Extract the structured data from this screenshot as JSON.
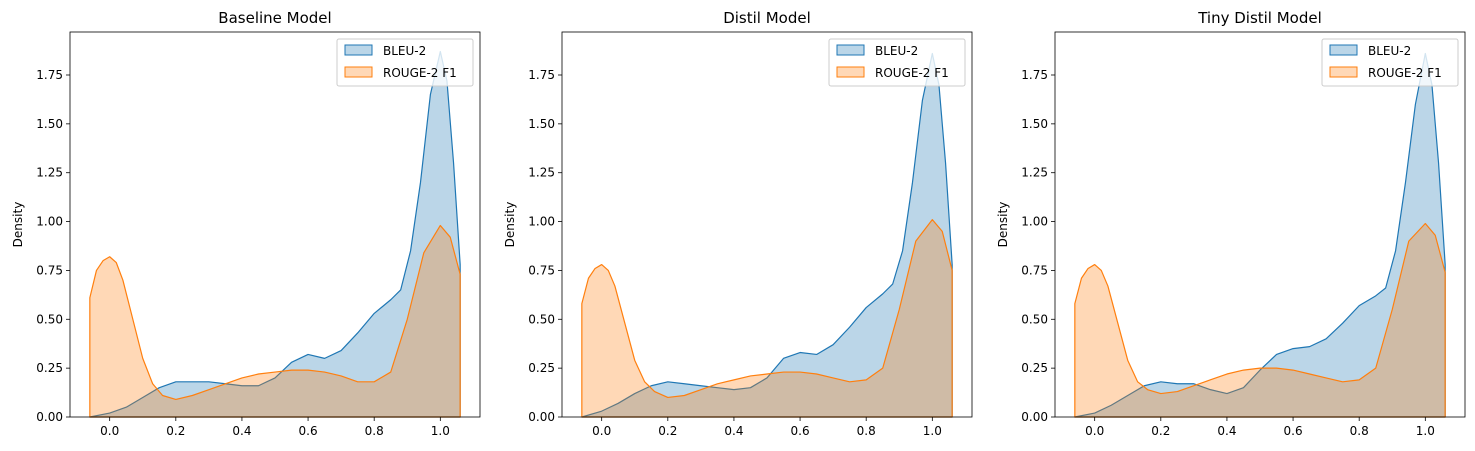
{
  "chart_data": [
    {
      "type": "area",
      "title": "Baseline Model",
      "xlabel": "",
      "ylabel": "Density",
      "xlim": [
        -0.12,
        1.12
      ],
      "ylim": [
        0,
        1.97
      ],
      "xticks": [
        "0.0",
        "0.2",
        "0.4",
        "0.6",
        "0.8",
        "1.0"
      ],
      "yticks": [
        "0.00",
        "0.25",
        "0.50",
        "0.75",
        "1.00",
        "1.25",
        "1.50",
        "1.75"
      ],
      "legend": "top-right",
      "series": [
        {
          "name": "BLEU-2",
          "color": "#1f77b4",
          "x": [
            -0.06,
            0.0,
            0.05,
            0.1,
            0.15,
            0.2,
            0.25,
            0.3,
            0.35,
            0.4,
            0.45,
            0.5,
            0.55,
            0.6,
            0.65,
            0.7,
            0.75,
            0.8,
            0.85,
            0.88,
            0.91,
            0.94,
            0.97,
            1.0,
            1.02,
            1.04,
            1.06
          ],
          "y": [
            0.0,
            0.02,
            0.05,
            0.1,
            0.15,
            0.18,
            0.18,
            0.18,
            0.17,
            0.16,
            0.16,
            0.2,
            0.28,
            0.32,
            0.3,
            0.34,
            0.43,
            0.53,
            0.6,
            0.65,
            0.85,
            1.2,
            1.65,
            1.87,
            1.72,
            1.3,
            0.78
          ]
        },
        {
          "name": "ROUGE-2 F1",
          "color": "#ff7f0e",
          "x": [
            -0.06,
            -0.04,
            -0.02,
            0.0,
            0.02,
            0.04,
            0.07,
            0.1,
            0.13,
            0.16,
            0.2,
            0.25,
            0.3,
            0.35,
            0.4,
            0.45,
            0.5,
            0.55,
            0.6,
            0.65,
            0.7,
            0.75,
            0.8,
            0.85,
            0.9,
            0.95,
            1.0,
            1.03,
            1.06
          ],
          "y": [
            0.61,
            0.75,
            0.8,
            0.82,
            0.79,
            0.7,
            0.5,
            0.3,
            0.17,
            0.11,
            0.09,
            0.11,
            0.14,
            0.17,
            0.2,
            0.22,
            0.23,
            0.24,
            0.24,
            0.23,
            0.21,
            0.18,
            0.18,
            0.23,
            0.5,
            0.84,
            0.98,
            0.92,
            0.73
          ]
        }
      ]
    },
    {
      "type": "area",
      "title": "Distil Model",
      "xlabel": "",
      "ylabel": "Density",
      "xlim": [
        -0.12,
        1.12
      ],
      "ylim": [
        0,
        1.97
      ],
      "xticks": [
        "0.0",
        "0.2",
        "0.4",
        "0.6",
        "0.8",
        "1.0"
      ],
      "yticks": [
        "0.00",
        "0.25",
        "0.50",
        "0.75",
        "1.00",
        "1.25",
        "1.50",
        "1.75"
      ],
      "legend": "top-right",
      "series": [
        {
          "name": "BLEU-2",
          "color": "#1f77b4",
          "x": [
            -0.06,
            0.0,
            0.05,
            0.1,
            0.15,
            0.2,
            0.25,
            0.3,
            0.35,
            0.4,
            0.45,
            0.5,
            0.55,
            0.6,
            0.65,
            0.7,
            0.75,
            0.8,
            0.85,
            0.88,
            0.91,
            0.94,
            0.97,
            1.0,
            1.02,
            1.04,
            1.06
          ],
          "y": [
            0.0,
            0.03,
            0.07,
            0.12,
            0.16,
            0.18,
            0.17,
            0.16,
            0.15,
            0.14,
            0.15,
            0.2,
            0.3,
            0.33,
            0.32,
            0.37,
            0.46,
            0.56,
            0.63,
            0.68,
            0.85,
            1.2,
            1.62,
            1.86,
            1.7,
            1.3,
            0.78
          ]
        },
        {
          "name": "ROUGE-2 F1",
          "color": "#ff7f0e",
          "x": [
            -0.06,
            -0.04,
            -0.02,
            0.0,
            0.02,
            0.04,
            0.07,
            0.1,
            0.13,
            0.16,
            0.2,
            0.25,
            0.3,
            0.35,
            0.4,
            0.45,
            0.5,
            0.55,
            0.6,
            0.65,
            0.7,
            0.75,
            0.8,
            0.85,
            0.9,
            0.95,
            1.0,
            1.03,
            1.06
          ],
          "y": [
            0.58,
            0.71,
            0.76,
            0.78,
            0.75,
            0.67,
            0.48,
            0.29,
            0.18,
            0.13,
            0.1,
            0.11,
            0.14,
            0.17,
            0.19,
            0.21,
            0.22,
            0.23,
            0.23,
            0.22,
            0.2,
            0.18,
            0.19,
            0.25,
            0.55,
            0.9,
            1.01,
            0.95,
            0.75
          ]
        }
      ]
    },
    {
      "type": "area",
      "title": "Tiny Distil Model",
      "xlabel": "",
      "ylabel": "Density",
      "xlim": [
        -0.12,
        1.12
      ],
      "ylim": [
        0,
        1.97
      ],
      "xticks": [
        "0.0",
        "0.2",
        "0.4",
        "0.6",
        "0.8",
        "1.0"
      ],
      "yticks": [
        "0.00",
        "0.25",
        "0.50",
        "0.75",
        "1.00",
        "1.25",
        "1.50",
        "1.75"
      ],
      "legend": "top-right",
      "series": [
        {
          "name": "BLEU-2",
          "color": "#1f77b4",
          "x": [
            -0.06,
            0.0,
            0.05,
            0.1,
            0.15,
            0.2,
            0.25,
            0.3,
            0.35,
            0.4,
            0.45,
            0.5,
            0.55,
            0.6,
            0.65,
            0.7,
            0.75,
            0.8,
            0.85,
            0.88,
            0.91,
            0.94,
            0.97,
            1.0,
            1.02,
            1.04,
            1.06
          ],
          "y": [
            0.0,
            0.02,
            0.06,
            0.11,
            0.16,
            0.18,
            0.17,
            0.17,
            0.14,
            0.12,
            0.15,
            0.24,
            0.32,
            0.35,
            0.36,
            0.4,
            0.48,
            0.57,
            0.62,
            0.66,
            0.85,
            1.2,
            1.6,
            1.86,
            1.7,
            1.3,
            0.78
          ]
        },
        {
          "name": "ROUGE-2 F1",
          "color": "#ff7f0e",
          "x": [
            -0.06,
            -0.04,
            -0.02,
            0.0,
            0.02,
            0.04,
            0.07,
            0.1,
            0.13,
            0.16,
            0.2,
            0.25,
            0.3,
            0.35,
            0.4,
            0.45,
            0.5,
            0.55,
            0.6,
            0.65,
            0.7,
            0.75,
            0.8,
            0.85,
            0.9,
            0.95,
            1.0,
            1.03,
            1.06
          ],
          "y": [
            0.58,
            0.71,
            0.76,
            0.78,
            0.75,
            0.67,
            0.48,
            0.29,
            0.18,
            0.14,
            0.12,
            0.13,
            0.16,
            0.19,
            0.22,
            0.24,
            0.25,
            0.25,
            0.24,
            0.22,
            0.2,
            0.18,
            0.19,
            0.25,
            0.55,
            0.9,
            0.99,
            0.93,
            0.74
          ]
        }
      ]
    }
  ]
}
